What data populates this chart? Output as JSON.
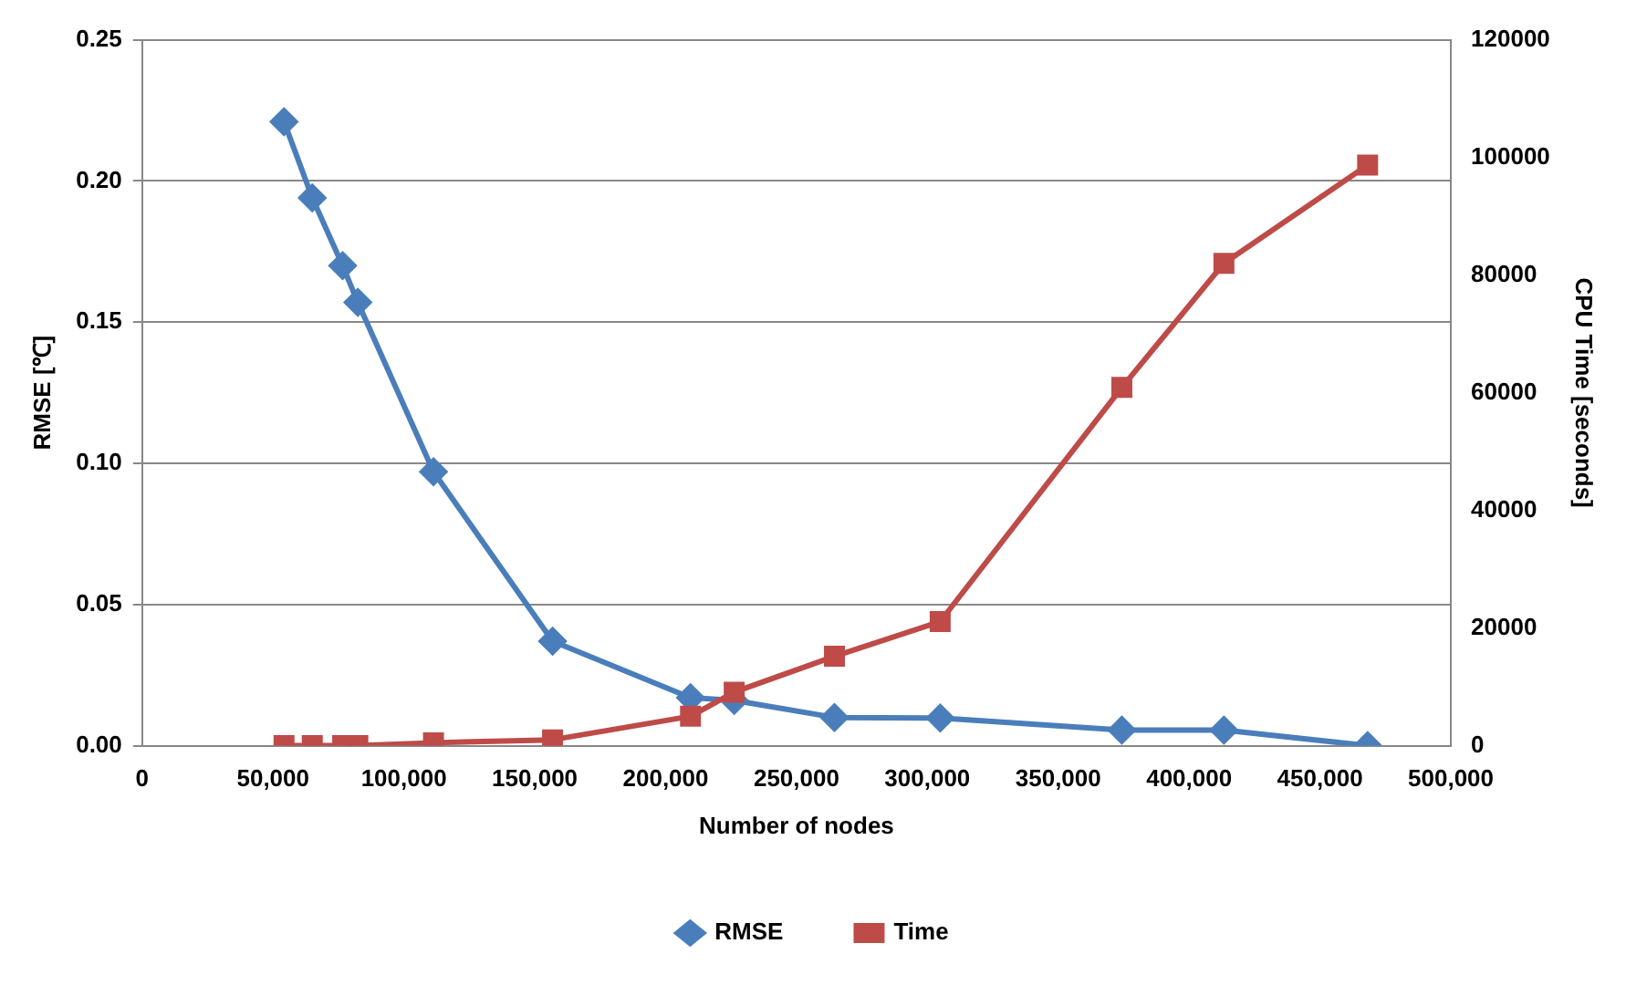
{
  "chart_data": {
    "type": "line",
    "xlabel": "Number of nodes",
    "ylabel": "RMSE [℃]",
    "y2label": "CPU Time [seconds]",
    "x": [
      54200,
      65000,
      76600,
      82400,
      111300,
      156800,
      209500,
      226200,
      264500,
      304900,
      374300,
      413300,
      468200
    ],
    "series": [
      {
        "name": "RMSE",
        "color": "#4a7ebb",
        "marker": "diamond",
        "values": [
          0.221,
          0.194,
          0.17,
          0.157,
          0.097,
          0.037,
          0.017,
          0.016,
          0.01,
          0.0098,
          0.0055,
          0.0055,
          0.0
        ]
      },
      {
        "name": "Time",
        "color": "#be4b48",
        "marker": "square",
        "axis": "y2",
        "values": [
          0,
          0,
          0,
          0,
          500,
          1000,
          5000,
          9100,
          15200,
          21100,
          60900,
          82000,
          98700
        ]
      }
    ],
    "xlim": [
      0,
      500000
    ],
    "xticks": [
      {
        "value": 0,
        "label": "0"
      },
      {
        "value": 50000,
        "label": "50,000"
      },
      {
        "value": 100000,
        "label": "100,000"
      },
      {
        "value": 150000,
        "label": "150,000"
      },
      {
        "value": 200000,
        "label": "200,000"
      },
      {
        "value": 250000,
        "label": "250,000"
      },
      {
        "value": 300000,
        "label": "300,000"
      },
      {
        "value": 350000,
        "label": "350,000"
      },
      {
        "value": 400000,
        "label": "400,000"
      },
      {
        "value": 450000,
        "label": "450,000"
      },
      {
        "value": 500000,
        "label": "500,000"
      }
    ],
    "ylim": [
      0,
      0.25
    ],
    "yticks": [
      {
        "value": 0,
        "label": "0.00"
      },
      {
        "value": 0.05,
        "label": "0.05"
      },
      {
        "value": 0.1,
        "label": "0.10"
      },
      {
        "value": 0.15,
        "label": "0.15"
      },
      {
        "value": 0.2,
        "label": "0.20"
      },
      {
        "value": 0.25,
        "label": "0.25"
      }
    ],
    "y2lim": [
      0,
      120000
    ],
    "y2ticks": [
      0,
      20000,
      40000,
      60000,
      80000,
      100000,
      120000
    ],
    "grid": "y",
    "legend": "bottom",
    "line_style": "solid"
  }
}
